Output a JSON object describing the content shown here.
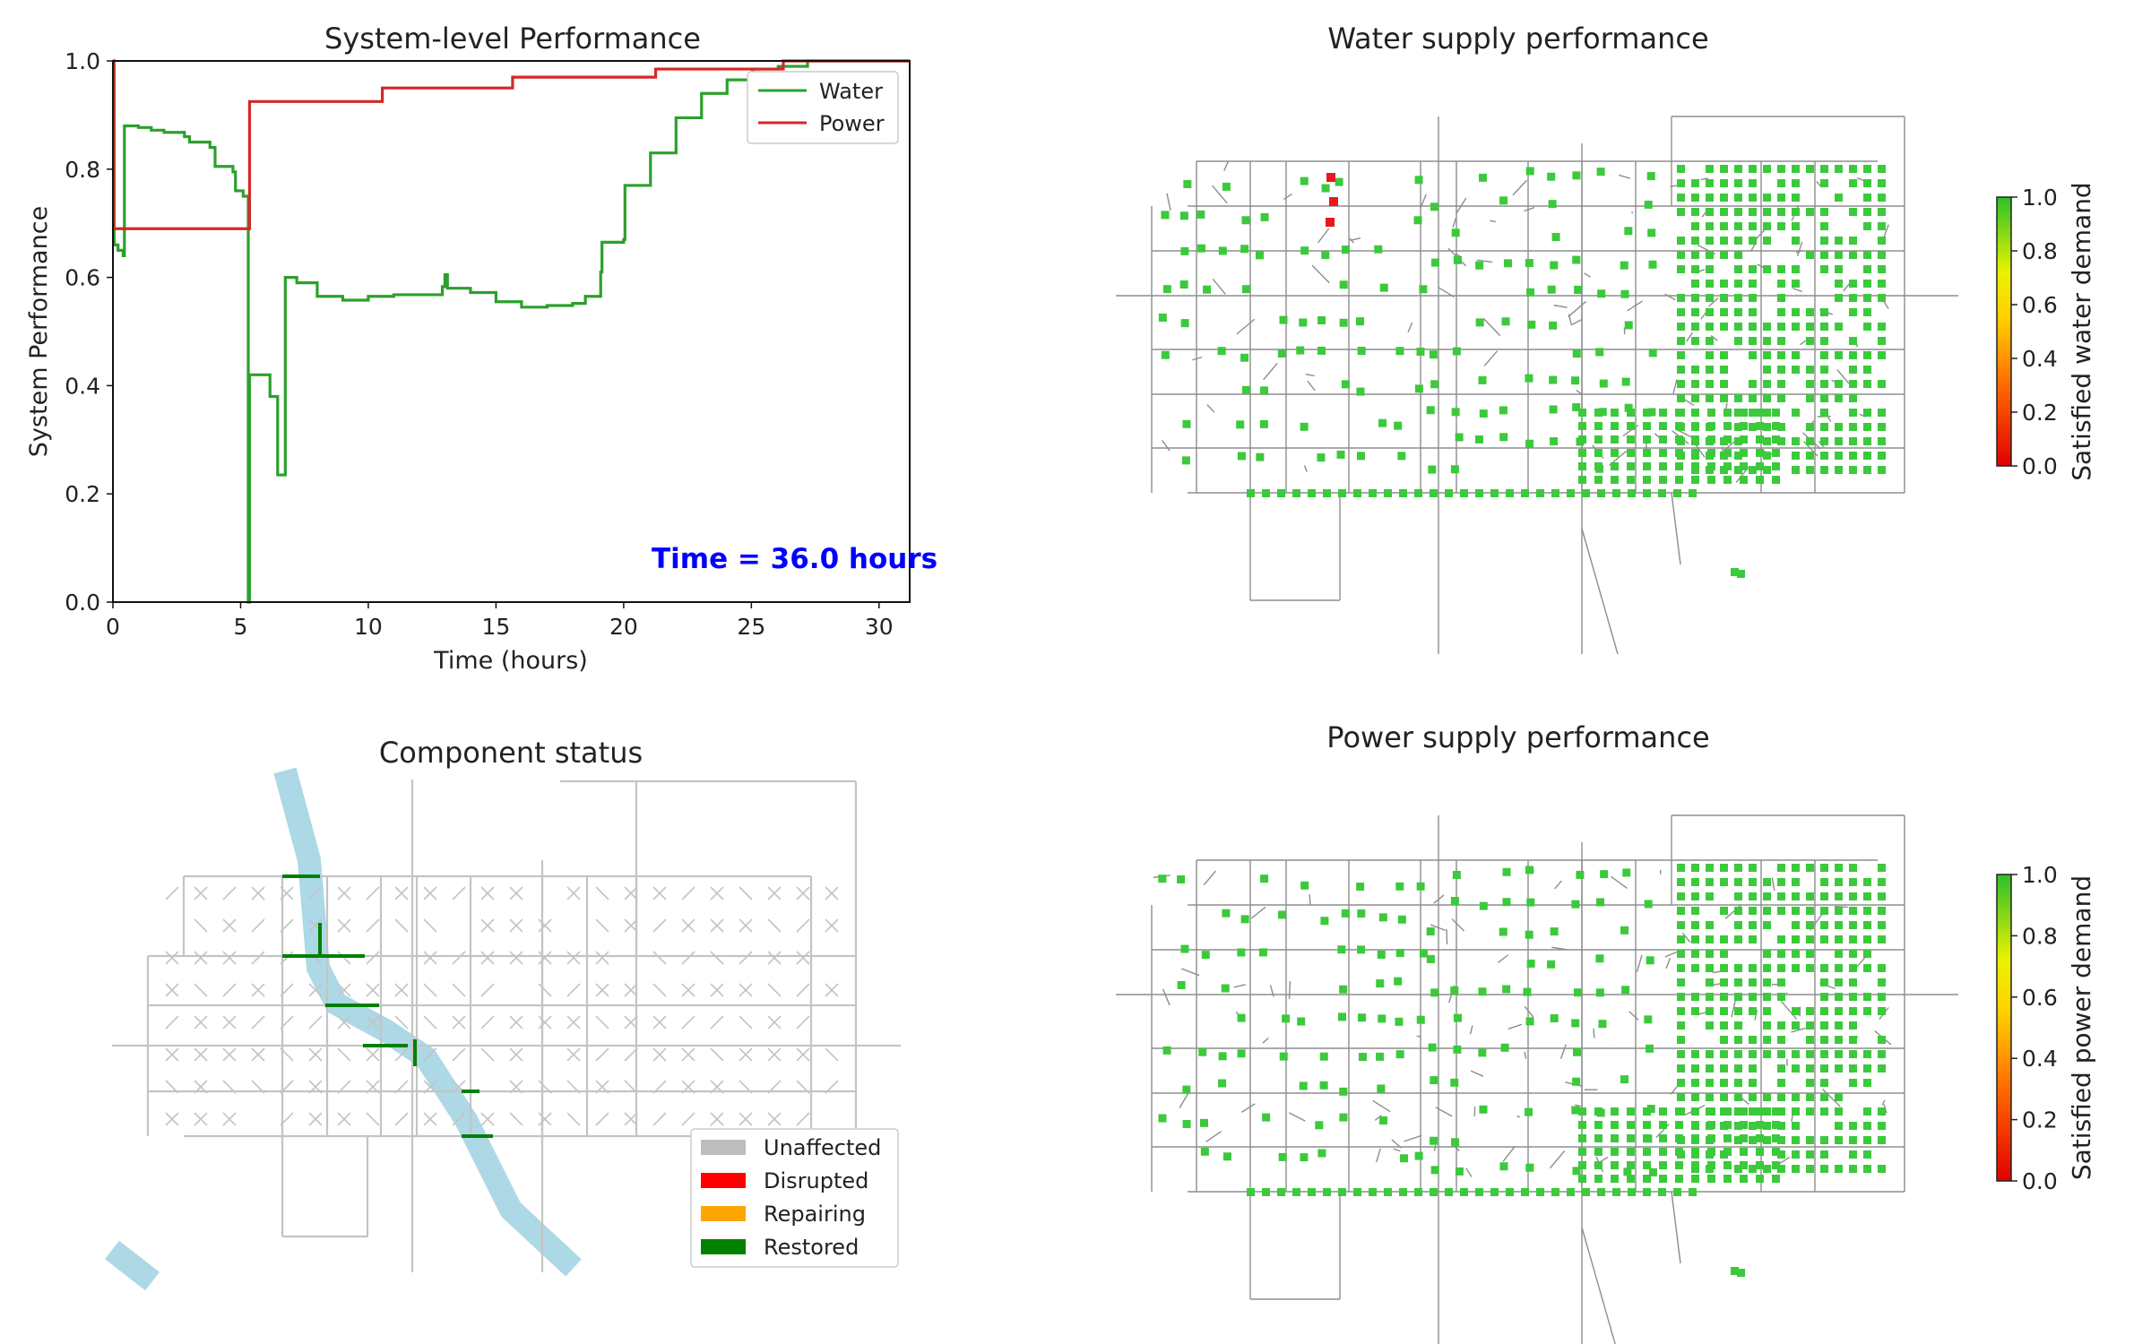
{
  "chart_data": [
    {
      "type": "line",
      "title": "System-level Performance",
      "xlabel": "Time (hours)",
      "ylabel": "System Performance",
      "xlim": [
        0,
        31.2
      ],
      "ylim": [
        0,
        1.0
      ],
      "xticks": [
        "0",
        "5",
        "10",
        "15",
        "20",
        "25",
        "30"
      ],
      "yticks": [
        "0.0",
        "0.2",
        "0.4",
        "0.6",
        "0.8",
        "1.0"
      ],
      "annotation": "Time = 36.0 hours",
      "annotation_color": "#0000ff",
      "legend_position": "top-right",
      "series": [
        {
          "name": "Water",
          "color": "#2ca02c",
          "points": [
            [
              0,
              1.0
            ],
            [
              0.05,
              0.66
            ],
            [
              0.2,
              0.65
            ],
            [
              0.4,
              0.64
            ],
            [
              0.45,
              0.88
            ],
            [
              1.0,
              0.877
            ],
            [
              1.5,
              0.872
            ],
            [
              2.0,
              0.868
            ],
            [
              2.8,
              0.86
            ],
            [
              3.0,
              0.85
            ],
            [
              3.8,
              0.84
            ],
            [
              4.0,
              0.805
            ],
            [
              4.7,
              0.795
            ],
            [
              4.8,
              0.76
            ],
            [
              5.1,
              0.75
            ],
            [
              5.3,
              0.0
            ],
            [
              5.35,
              0.42
            ],
            [
              6.1,
              0.42
            ],
            [
              6.15,
              0.38
            ],
            [
              6.4,
              0.38
            ],
            [
              6.45,
              0.235
            ],
            [
              6.7,
              0.235
            ],
            [
              6.75,
              0.6
            ],
            [
              7.2,
              0.59
            ],
            [
              8.0,
              0.565
            ],
            [
              9.0,
              0.558
            ],
            [
              10.0,
              0.565
            ],
            [
              11.0,
              0.568
            ],
            [
              12.0,
              0.568
            ],
            [
              12.9,
              0.583
            ],
            [
              13.0,
              0.605
            ],
            [
              13.1,
              0.58
            ],
            [
              14.0,
              0.572
            ],
            [
              15.0,
              0.555
            ],
            [
              16.0,
              0.545
            ],
            [
              17.0,
              0.548
            ],
            [
              18.0,
              0.552
            ],
            [
              18.5,
              0.565
            ],
            [
              19.1,
              0.61
            ],
            [
              19.15,
              0.665
            ],
            [
              20.0,
              0.67
            ],
            [
              20.05,
              0.77
            ],
            [
              21.0,
              0.77
            ],
            [
              21.05,
              0.83
            ],
            [
              22.0,
              0.83
            ],
            [
              22.05,
              0.895
            ],
            [
              23.0,
              0.895
            ],
            [
              23.05,
              0.94
            ],
            [
              24.0,
              0.94
            ],
            [
              24.05,
              0.965
            ],
            [
              25.0,
              0.965
            ],
            [
              25.05,
              0.985
            ],
            [
              26.0,
              0.985
            ],
            [
              26.05,
              0.99
            ],
            [
              27.0,
              0.99
            ],
            [
              27.2,
              1.0
            ],
            [
              31.2,
              1.0
            ]
          ]
        },
        {
          "name": "Power",
          "color": "#d62728",
          "points": [
            [
              0,
              1.0
            ],
            [
              0.02,
              0.69
            ],
            [
              5.3,
              0.69
            ],
            [
              5.35,
              0.925
            ],
            [
              10.5,
              0.925
            ],
            [
              10.55,
              0.95
            ],
            [
              15.6,
              0.95
            ],
            [
              15.65,
              0.97
            ],
            [
              21.2,
              0.97
            ],
            [
              21.25,
              0.985
            ],
            [
              26.2,
              0.985
            ],
            [
              26.25,
              1.0
            ],
            [
              31.2,
              1.0
            ]
          ]
        }
      ]
    },
    {
      "type": "map",
      "title": "Water supply performance",
      "colorbar_label": "Satisfied water demand",
      "colorbar_ticks": [
        "0.0",
        "0.2",
        "0.4",
        "0.6",
        "0.8",
        "1.0"
      ],
      "colorbar_range": [
        0.0,
        1.0
      ],
      "node_color": "#3cc93c",
      "disrupted_color": "#e8191d"
    },
    {
      "type": "map",
      "title": "Component status",
      "legend": [
        {
          "label": "Unaffected",
          "color": "#bdbdbd"
        },
        {
          "label": "Disrupted",
          "color": "#ff0000"
        },
        {
          "label": "Repairing",
          "color": "#ffa500"
        },
        {
          "label": "Restored",
          "color": "#008000"
        }
      ],
      "river_color": "#add8e6"
    },
    {
      "type": "map",
      "title": "Power supply performance",
      "colorbar_label": "Satisfied power demand",
      "colorbar_ticks": [
        "0.0",
        "0.2",
        "0.4",
        "0.6",
        "0.8",
        "1.0"
      ],
      "colorbar_range": [
        0.0,
        1.0
      ],
      "node_color": "#3cc93c"
    }
  ]
}
